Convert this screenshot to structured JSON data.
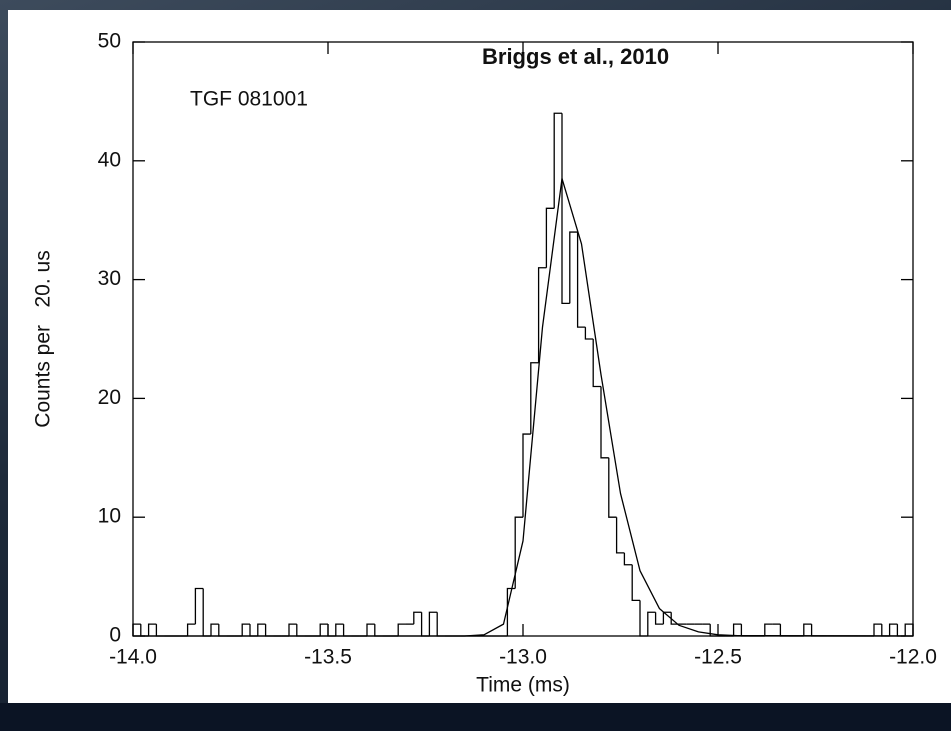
{
  "chart_data": {
    "type": "histogram",
    "title": "Briggs et al.,  2010",
    "annotation": "TGF 081001",
    "x_label": "Time (ms)",
    "y_label": "Counts per   20. us",
    "bins": [
      -14,
      -13.98,
      -13.96,
      -13.94,
      -13.92,
      -13.9,
      -13.88,
      -13.86,
      -13.84,
      -13.82,
      -13.8,
      -13.78,
      -13.76,
      -13.74,
      -13.72,
      -13.7,
      -13.68,
      -13.66,
      -13.64,
      -13.62,
      -13.6,
      -13.58,
      -13.56,
      -13.54,
      -13.52,
      -13.5,
      -13.48,
      -13.46,
      -13.44,
      -13.42,
      -13.4,
      -13.38,
      -13.36,
      -13.34,
      -13.32,
      -13.3,
      -13.28,
      -13.26,
      -13.24,
      -13.22,
      -13.2,
      -13.18,
      -13.16,
      -13.14,
      -13.12,
      -13.1,
      -13.08,
      -13.06,
      -13.04,
      -13.02,
      -13,
      -12.98,
      -12.96,
      -12.94,
      -12.92,
      -12.9,
      -12.88,
      -12.86,
      -12.84,
      -12.82,
      -12.8,
      -12.78,
      -12.76,
      -12.74,
      -12.72,
      -12.7,
      -12.68,
      -12.66,
      -12.64,
      -12.62,
      -12.6,
      -12.58,
      -12.56,
      -12.54,
      -12.52,
      -12.5,
      -12.48,
      -12.46,
      -12.44,
      -12.42,
      -12.4,
      -12.38,
      -12.36,
      -12.34,
      -12.32,
      -12.3,
      -12.28,
      -12.26,
      -12.24,
      -12.22,
      -12.2,
      -12.18,
      -12.16,
      -12.14,
      -12.12,
      -12.1,
      -12.08,
      -12.06,
      -12.04,
      -12.02,
      -12
    ],
    "values": [
      1,
      0,
      1,
      0,
      0,
      0,
      0,
      1,
      4,
      0,
      1,
      0,
      0,
      0,
      1,
      0,
      1,
      0,
      0,
      0,
      1,
      0,
      0,
      0,
      1,
      0,
      1,
      0,
      0,
      0,
      1,
      0,
      0,
      0,
      1,
      1,
      2,
      0,
      2,
      0,
      0,
      0,
      0,
      0,
      0,
      0,
      0,
      0,
      4,
      10,
      17,
      23,
      31,
      36,
      44,
      28,
      34,
      26,
      25,
      21,
      15,
      10,
      7,
      6,
      3,
      0,
      2,
      1,
      2,
      1,
      1,
      1,
      1,
      1,
      0,
      0,
      0,
      1,
      0,
      0,
      0,
      1,
      1,
      0,
      0,
      0,
      1,
      0,
      0,
      0,
      0,
      0,
      0,
      0,
      0,
      1,
      0,
      1,
      0,
      1
    ],
    "color": "#000000",
    "fit": {
      "x": [
        -14,
        -13.15,
        -13.1,
        -13.05,
        -13.0,
        -12.95,
        -12.9,
        -12.85,
        -12.8,
        -12.75,
        -12.7,
        -12.65,
        -12.6,
        -12.55,
        -12.5,
        -12.45,
        -12
      ],
      "values": [
        0,
        0,
        0.1,
        1,
        8,
        26,
        38.5,
        33,
        22,
        12,
        5.5,
        2.3,
        0.9,
        0.35,
        0.1,
        0.03,
        0
      ]
    },
    "xlim": [
      -14,
      -12
    ],
    "ylim": [
      0,
      50
    ],
    "xticks": [
      {
        "value": -14,
        "label": "-14.0"
      },
      {
        "value": -13.5,
        "label": "-13.5"
      },
      {
        "value": -13,
        "label": "-13.0"
      },
      {
        "value": -12.5,
        "label": "-12.5"
      },
      {
        "value": -12,
        "label": "-12.0"
      }
    ],
    "yticks": [
      0,
      10,
      20,
      30,
      40,
      50
    ]
  }
}
